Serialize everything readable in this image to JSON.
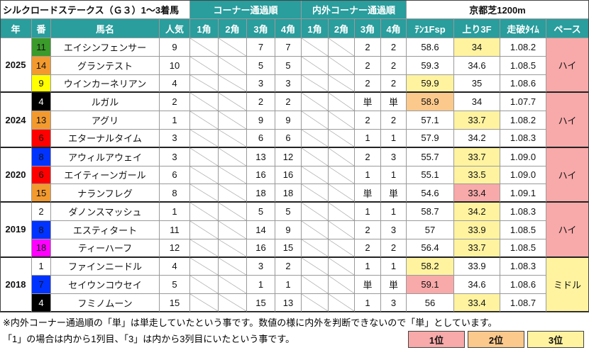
{
  "title": "シルクロードステークス（Ｇ３）1～3着馬",
  "group_headers": {
    "corner": "コーナー通過順",
    "inout": "内外コーナー通過順",
    "course": "京都芝1200m"
  },
  "columns": [
    "年",
    "番",
    "馬名",
    "人気",
    "1角",
    "2角",
    "3角",
    "4角",
    "1角",
    "2角",
    "3角",
    "4角",
    "ﾃﾝ1Fsp",
    "上り3F",
    "走破ﾀｲﾑ",
    "ペース"
  ],
  "groups": [
    {
      "year": 2025,
      "pace": "ハイ",
      "pace_color": "#f8a9a9",
      "rows": [
        {
          "number": 11,
          "frame_color": "#3a9a2a",
          "name": "エイシンフェンサー",
          "popularity": 9,
          "corner3": 7,
          "corner4": 7,
          "inout3": 2,
          "inout4": 2,
          "ten": 58.6,
          "agari": 34,
          "agari_color": "#fff3a0",
          "time": "1.08.2"
        },
        {
          "number": 14,
          "frame_color": "#f39a2e",
          "name": "グランテスト",
          "popularity": 10,
          "corner3": 5,
          "corner4": 5,
          "inout3": 2,
          "inout4": 2,
          "ten": 59.3,
          "agari": 34.6,
          "time": "1.08.5"
        },
        {
          "number": 9,
          "frame_color": "#ffff00",
          "name": "ウインカーネリアン",
          "popularity": 4,
          "corner3": 3,
          "corner4": 3,
          "inout3": 2,
          "inout4": 2,
          "ten": 59.9,
          "ten_color": "#fff3a0",
          "agari": 35,
          "time": "1.08.6"
        }
      ]
    },
    {
      "year": 2024,
      "pace": "ハイ",
      "pace_color": "#f8a9a9",
      "rows": [
        {
          "number": 4,
          "frame_color": "#000000",
          "name": "ルガル",
          "popularity": 2,
          "corner3": 2,
          "corner4": 2,
          "inout3": "単",
          "inout4": "単",
          "ten": 58.9,
          "ten_color": "#fcc98c",
          "agari": 34,
          "time": "1.07.7"
        },
        {
          "number": 13,
          "frame_color": "#f39a2e",
          "name": "アグリ",
          "popularity": 1,
          "corner3": 9,
          "corner4": 9,
          "inout3": 2,
          "inout4": 2,
          "ten": 57.1,
          "agari": 33.7,
          "agari_color": "#fff3a0",
          "time": "1.08.2"
        },
        {
          "number": 6,
          "frame_color": "#ff0000",
          "name": "エターナルタイム",
          "popularity": 3,
          "corner3": 6,
          "corner4": 6,
          "inout3": 1,
          "inout4": 1,
          "ten": 57.9,
          "agari": 34.2,
          "time": "1.08.3"
        }
      ]
    },
    {
      "year": 2020,
      "pace": "ハイ",
      "pace_color": "#f8a9a9",
      "rows": [
        {
          "number": 8,
          "frame_color": "#0033ff",
          "name": "アウィルアウェイ",
          "popularity": 3,
          "corner3": 13,
          "corner4": 12,
          "inout3": 2,
          "inout4": 3,
          "ten": 55.7,
          "agari": 33.7,
          "agari_color": "#fff3a0",
          "time": "1.09.0"
        },
        {
          "number": 6,
          "frame_color": "#ff0000",
          "name": "エイティーンガール",
          "popularity": 6,
          "corner3": 16,
          "corner4": 16,
          "inout3": 1,
          "inout4": 1,
          "ten": 55.1,
          "agari": 33.5,
          "agari_color": "#fff3a0",
          "time": "1.09.0"
        },
        {
          "number": 15,
          "frame_color": "#f39a2e",
          "name": "ナランフレグ",
          "popularity": 8,
          "corner3": 18,
          "corner4": 18,
          "inout3": "単",
          "inout4": "単",
          "ten": 54.6,
          "agari": 33.4,
          "agari_color": "#f8a9a9",
          "time": "1.09.1"
        }
      ]
    },
    {
      "year": 2019,
      "pace": "ハイ",
      "pace_color": "#f8a9a9",
      "rows": [
        {
          "number": 2,
          "frame_color": "#ffffff",
          "name": "ダノンスマッシュ",
          "popularity": 1,
          "corner3": 5,
          "corner4": 5,
          "inout3": 1,
          "inout4": 1,
          "ten": 58.7,
          "agari": 34.2,
          "agari_color": "#fff3a0",
          "time": "1.08.3"
        },
        {
          "number": 8,
          "frame_color": "#0033ff",
          "name": "エスティタート",
          "popularity": 11,
          "corner3": 14,
          "corner4": 9,
          "inout3": 2,
          "inout4": 3,
          "ten": 57,
          "agari": 33.9,
          "agari_color": "#fff3a0",
          "time": "1.08.5"
        },
        {
          "number": 18,
          "frame_color": "#ff00ff",
          "name": "ティーハーフ",
          "popularity": 12,
          "corner3": 16,
          "corner4": 15,
          "inout3": 2,
          "inout4": 2,
          "ten": 56.4,
          "agari": 33.7,
          "agari_color": "#fff3a0",
          "time": "1.08.5"
        }
      ]
    },
    {
      "year": 2018,
      "pace": "ミドル",
      "pace_color": "#fff3a0",
      "rows": [
        {
          "number": 1,
          "frame_color": "#ffffff",
          "name": "ファインニードル",
          "popularity": 4,
          "corner3": 3,
          "corner4": 2,
          "inout3": 1,
          "inout4": 1,
          "ten": 58.2,
          "ten_color": "#fff3a0",
          "agari": 33.9,
          "time": "1.08.3"
        },
        {
          "number": 7,
          "frame_color": "#0033ff",
          "name": "セイウンコウセイ",
          "popularity": 5,
          "corner3": 1,
          "corner4": 1,
          "inout3": "単",
          "inout4": "単",
          "ten": 59.1,
          "ten_color": "#f8a9a9",
          "agari": 34.6,
          "time": "1.08.6"
        },
        {
          "number": 4,
          "frame_color": "#000000",
          "name": "フミノムーン",
          "popularity": 15,
          "corner3": 15,
          "corner4": 13,
          "inout3": 1,
          "inout4": 3,
          "ten": 56,
          "agari": 33.4,
          "agari_color": "#fff3a0",
          "time": "1.08.7"
        }
      ]
    }
  ],
  "notes": [
    "※内外コーナー通過順の「単」は単走していたという事です。数値の様に内外を判断できないので「単」としています。",
    "「1」の場合は内から1列目、「3」は内から3列目にいたという事です。"
  ],
  "legend": [
    {
      "label": "1位",
      "color": "#f8a9a9"
    },
    {
      "label": "2位",
      "color": "#fcc98c"
    },
    {
      "label": "3位",
      "color": "#fff3a0"
    }
  ]
}
